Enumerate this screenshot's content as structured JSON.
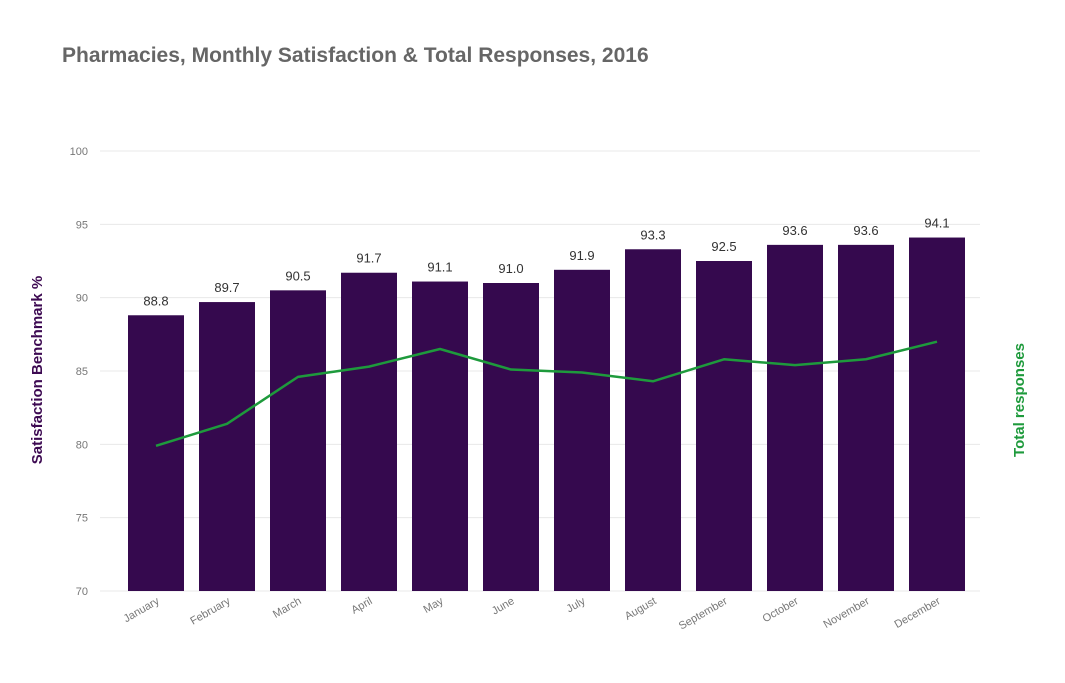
{
  "chart_data": {
    "type": "bar",
    "title": "Pharmacies, Monthly Satisfaction & Total Responses, 2016",
    "xlabel": "",
    "ylabel": "Satisfaction Benchmark %",
    "y2label": "Total responses",
    "ylim": [
      70,
      100
    ],
    "yticks": [
      "70",
      "75",
      "80",
      "85",
      "90",
      "95",
      "100"
    ],
    "ytick_values": [
      70,
      75,
      80,
      85,
      90,
      95,
      100
    ],
    "categories": [
      "January",
      "February",
      "March",
      "April",
      "May",
      "June",
      "July",
      "August",
      "September",
      "October",
      "November",
      "December"
    ],
    "series": [
      {
        "type": "bar",
        "values": [
          88.8,
          89.7,
          90.5,
          91.7,
          91.1,
          91.0,
          91.9,
          93.3,
          92.5,
          93.6,
          93.6,
          94.1
        ],
        "labels": [
          "88.8",
          "89.7",
          "90.5",
          "91.7",
          "91.1",
          "91.0",
          "91.9",
          "93.3",
          "92.5",
          "93.6",
          "93.6",
          "94.1"
        ],
        "color": "#35094e"
      },
      {
        "type": "line",
        "axis": "right",
        "values_on_left_scale": [
          79.9,
          81.4,
          84.6,
          85.3,
          86.5,
          85.1,
          84.9,
          84.3,
          85.8,
          85.4,
          85.8,
          87.0
        ],
        "color": "#1e9a3c"
      }
    ],
    "grid": true,
    "legend": "none",
    "colors": {
      "ylabel": "#3d0a52",
      "y2label": "#1e9a3c",
      "grid": "#e8e8e8"
    }
  }
}
